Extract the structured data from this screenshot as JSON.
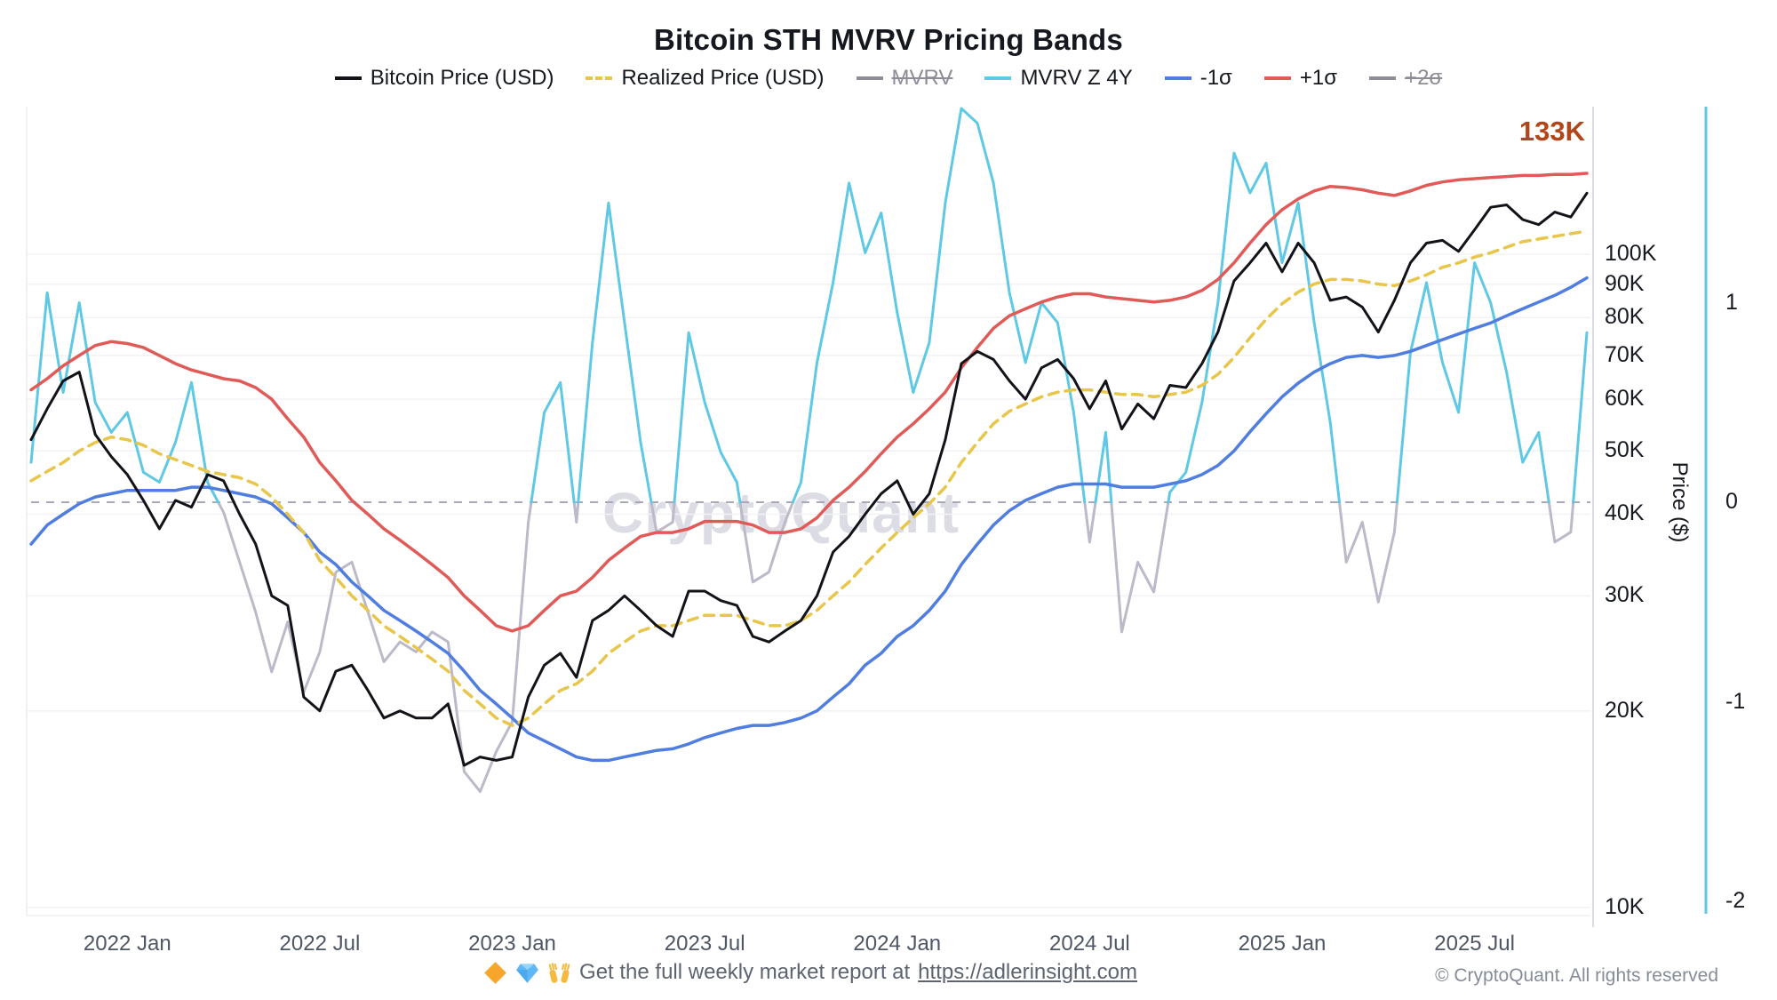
{
  "title": "Bitcoin STH MVRV Pricing Bands",
  "watermark": "CryptoQuant",
  "annotation": {
    "label": "133K",
    "color": "#b04619"
  },
  "legend": [
    {
      "label": "Bitcoin Price (USD)",
      "color": "#111318",
      "style": "solid",
      "disabled": false
    },
    {
      "label": "Realized Price (USD)",
      "color": "#e8c64b",
      "style": "dashed",
      "disabled": false
    },
    {
      "label": "MVRV",
      "color": "#8d8d98",
      "style": "solid",
      "disabled": true
    },
    {
      "label": "MVRV Z 4Y",
      "color": "#5ec8e5",
      "style": "solid",
      "disabled": false
    },
    {
      "label": "-1σ",
      "color": "#4f7de0",
      "style": "solid",
      "disabled": false
    },
    {
      "label": "+1σ",
      "color": "#e05a58",
      "style": "solid",
      "disabled": false
    },
    {
      "label": "+2σ",
      "color": "#8d8d98",
      "style": "solid",
      "disabled": true
    }
  ],
  "axes": {
    "price": {
      "title": "Price ($)",
      "scale": "log",
      "tick_labels": [
        "100K",
        "90K",
        "80K",
        "70K",
        "60K",
        "50K",
        "40K",
        "30K",
        "20K",
        "10K"
      ],
      "tick_values": [
        100000,
        90000,
        80000,
        70000,
        60000,
        50000,
        40000,
        30000,
        20000,
        10000
      ]
    },
    "z": {
      "tick_labels": [
        "1",
        "0",
        "-1",
        "-2"
      ],
      "tick_values": [
        1,
        0,
        -1,
        -2
      ],
      "axis_color": "#5ec8e5"
    },
    "x": {
      "tick_labels": [
        "2022 Jan",
        "2022 Jul",
        "2023 Jan",
        "2023 Jul",
        "2024 Jan",
        "2024 Jul",
        "2025 Jan",
        "2025 Jul"
      ]
    }
  },
  "footer": {
    "icons": [
      "orange-diamond-icon",
      "gem-icon",
      "raised-hands-icon"
    ],
    "text_before_link": "Get the full weekly market report at ",
    "link": "https://adlerinsight.com",
    "copyright": "© CryptoQuant. All rights reserved"
  },
  "chart_data": {
    "type": "line",
    "title": "Bitcoin STH MVRV Pricing Bands",
    "x_start": "2021-10",
    "x_end": "2025-10",
    "points_per_month": 2,
    "x_tick_labels": [
      "2022 Jan",
      "2022 Jul",
      "2023 Jan",
      "2023 Jul",
      "2024 Jan",
      "2024 Jul",
      "2025 Jan",
      "2025 Jul"
    ],
    "price_axis": {
      "scale": "log",
      "range": [
        9700,
        168000
      ],
      "ylabel": "Price ($)"
    },
    "z_axis": {
      "range": [
        -2.05,
        1.98
      ],
      "zero_reference_line": "dashed-gray"
    },
    "grid": "horizontal-faint",
    "legend_position": "top-center",
    "series": [
      {
        "name": "Bitcoin Price (USD)",
        "axis": "price",
        "color": "#111318",
        "style": "solid",
        "width": 3,
        "values": [
          52000,
          58000,
          64000,
          66000,
          53000,
          49000,
          46000,
          42000,
          38000,
          42000,
          41000,
          46000,
          45000,
          40000,
          36000,
          30000,
          29000,
          21000,
          20000,
          23000,
          23500,
          21500,
          19500,
          20000,
          19500,
          19500,
          20500,
          16500,
          17000,
          16800,
          17000,
          21000,
          23500,
          24500,
          22500,
          27500,
          28500,
          30000,
          28500,
          27000,
          26000,
          30500,
          30500,
          29500,
          29000,
          26000,
          25500,
          26500,
          27500,
          30000,
          35000,
          37000,
          40000,
          43000,
          45000,
          40000,
          43000,
          52000,
          68000,
          71000,
          69000,
          64000,
          60000,
          67000,
          69000,
          64500,
          58000,
          64000,
          54000,
          59000,
          56000,
          63000,
          62500,
          68000,
          76000,
          91000,
          97000,
          104000,
          94000,
          104000,
          97000,
          85000,
          86000,
          83000,
          76000,
          85000,
          97000,
          104000,
          105000,
          101000,
          109000,
          118000,
          119000,
          113000,
          111000,
          116000,
          114000,
          124000
        ]
      },
      {
        "name": "Realized Price (USD)",
        "axis": "price",
        "color": "#e8c64b",
        "style": "dashed",
        "width": 3.5,
        "values": [
          45000,
          46500,
          48000,
          50000,
          51500,
          52500,
          52000,
          51000,
          49500,
          48500,
          47500,
          46500,
          46000,
          45500,
          44500,
          42500,
          40000,
          37500,
          34000,
          32000,
          30000,
          28500,
          27000,
          26000,
          25000,
          24000,
          23000,
          21500,
          20500,
          19500,
          19000,
          19500,
          20500,
          21500,
          22000,
          23000,
          24500,
          25500,
          26500,
          27000,
          27000,
          27500,
          28000,
          28000,
          28000,
          27500,
          27000,
          27000,
          27500,
          28500,
          30000,
          31500,
          33500,
          35500,
          37500,
          39500,
          41500,
          44000,
          48000,
          51500,
          55000,
          57500,
          59000,
          60500,
          61500,
          62000,
          62000,
          61500,
          61000,
          61000,
          60500,
          61000,
          61500,
          63000,
          65500,
          69500,
          74500,
          79500,
          84000,
          87500,
          90000,
          91500,
          91500,
          91000,
          90000,
          89500,
          91000,
          93000,
          95500,
          97000,
          99000,
          100500,
          102500,
          104500,
          105500,
          106500,
          107500,
          108500
        ]
      },
      {
        "name": "+1σ",
        "axis": "price",
        "color": "#e05a58",
        "style": "solid",
        "width": 3.5,
        "values": [
          62000,
          64500,
          67500,
          70000,
          72500,
          73500,
          73000,
          72000,
          70000,
          68000,
          66500,
          65500,
          64500,
          64000,
          62500,
          60000,
          56000,
          52500,
          48000,
          45000,
          42000,
          40000,
          38000,
          36500,
          35000,
          33500,
          32000,
          30000,
          28500,
          27000,
          26500,
          27000,
          28500,
          30000,
          30500,
          32000,
          34000,
          35500,
          37000,
          37500,
          37500,
          38000,
          39000,
          39000,
          39000,
          38500,
          37500,
          37500,
          38000,
          39500,
          42000,
          44000,
          46500,
          49500,
          52500,
          55000,
          58000,
          61500,
          67000,
          72000,
          77000,
          80500,
          82500,
          84500,
          86000,
          87000,
          87000,
          86000,
          85500,
          85000,
          84500,
          85000,
          86000,
          88000,
          91500,
          97000,
          104000,
          111000,
          117000,
          121500,
          125000,
          127000,
          126500,
          125500,
          124000,
          123000,
          125000,
          127500,
          129000,
          130000,
          130500,
          131000,
          131500,
          132000,
          132000,
          132500,
          132500,
          133000
        ]
      },
      {
        "name": "-1σ",
        "axis": "price",
        "color": "#4f7de0",
        "style": "solid",
        "width": 3.5,
        "values": [
          36000,
          38500,
          40000,
          41500,
          42500,
          43000,
          43500,
          43500,
          43500,
          43500,
          44000,
          44000,
          43500,
          43000,
          42500,
          41500,
          39500,
          37500,
          35000,
          33500,
          31500,
          30000,
          28500,
          27500,
          26500,
          25500,
          24500,
          23000,
          21500,
          20500,
          19500,
          18500,
          18000,
          17500,
          17000,
          16800,
          16800,
          17000,
          17200,
          17400,
          17500,
          17800,
          18200,
          18500,
          18800,
          19000,
          19000,
          19200,
          19500,
          20000,
          21000,
          22000,
          23500,
          24500,
          26000,
          27000,
          28500,
          30500,
          33500,
          36000,
          38500,
          40500,
          42000,
          43000,
          44000,
          44500,
          44500,
          44500,
          44000,
          44000,
          44000,
          44500,
          45000,
          46000,
          47500,
          50000,
          53500,
          57000,
          60500,
          63500,
          66000,
          68000,
          69500,
          70000,
          69500,
          70000,
          71000,
          72500,
          74000,
          75500,
          77000,
          78500,
          80500,
          82500,
          84500,
          86500,
          89000,
          92000
        ]
      },
      {
        "name": "MVRV Z 4Y",
        "axis": "z",
        "color": "#5ec8e5",
        "color_below_zero": "#bcb9c8",
        "style": "solid",
        "width": 3,
        "values": [
          0.2,
          1.05,
          0.55,
          1.0,
          0.5,
          0.35,
          0.45,
          0.15,
          0.1,
          0.3,
          0.6,
          0.1,
          -0.05,
          -0.3,
          -0.55,
          -0.85,
          -0.6,
          -0.95,
          -0.75,
          -0.35,
          -0.3,
          -0.55,
          -0.8,
          -0.7,
          -0.75,
          -0.65,
          -0.7,
          -1.35,
          -1.45,
          -1.25,
          -1.1,
          -0.1,
          0.45,
          0.6,
          -0.1,
          0.8,
          1.5,
          0.9,
          0.3,
          -0.15,
          -0.1,
          0.85,
          0.5,
          0.25,
          0.1,
          -0.4,
          -0.35,
          -0.1,
          0.1,
          0.7,
          1.1,
          1.6,
          1.25,
          1.45,
          0.95,
          0.55,
          0.8,
          1.5,
          2.2,
          1.9,
          1.6,
          1.05,
          0.7,
          1.0,
          0.9,
          0.45,
          -0.2,
          0.35,
          -0.65,
          -0.3,
          -0.45,
          0.05,
          0.15,
          0.5,
          1.0,
          1.75,
          1.55,
          1.7,
          1.2,
          1.5,
          0.9,
          0.4,
          -0.3,
          -0.1,
          -0.5,
          -0.15,
          0.75,
          1.1,
          0.7,
          0.45,
          1.2,
          1.0,
          0.65,
          0.2,
          0.35,
          -0.2,
          -0.15,
          0.85
        ]
      }
    ],
    "annotations": [
      {
        "text": "133K",
        "position": "end-of-plus1-sigma",
        "color": "#b04619"
      }
    ]
  }
}
